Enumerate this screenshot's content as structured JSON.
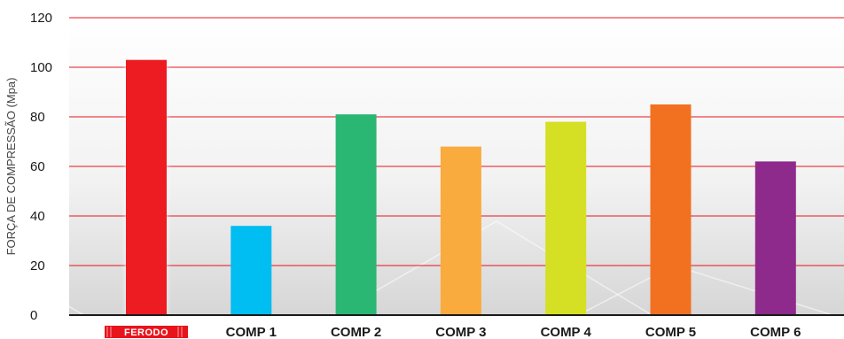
{
  "chart_data": {
    "type": "bar",
    "ylabel": "FORÇA DE COMPRESSÃO (Mpa)",
    "xlabel": "",
    "ylim": [
      0,
      120
    ],
    "yticks": [
      0,
      20,
      40,
      60,
      80,
      100,
      120
    ],
    "grid": true,
    "categories": [
      "FERODO",
      "COMP 1",
      "COMP 2",
      "COMP 3",
      "COMP 4",
      "COMP 5",
      "COMP 6"
    ],
    "values": [
      103,
      36,
      81,
      68,
      78,
      85,
      62
    ],
    "bar_colors": [
      "#ed1c24",
      "#00bdf2",
      "#2ab673",
      "#f9ab3d",
      "#d5df24",
      "#f27121",
      "#8e2a8b"
    ],
    "first_category_is_logo": true
  },
  "colors": {
    "gridline": "#e8141c",
    "axis": "#1a1a1a",
    "background_top": "#ffffff",
    "background_bottom": "#d9d9d9",
    "logo_bg": "#e8141c"
  }
}
